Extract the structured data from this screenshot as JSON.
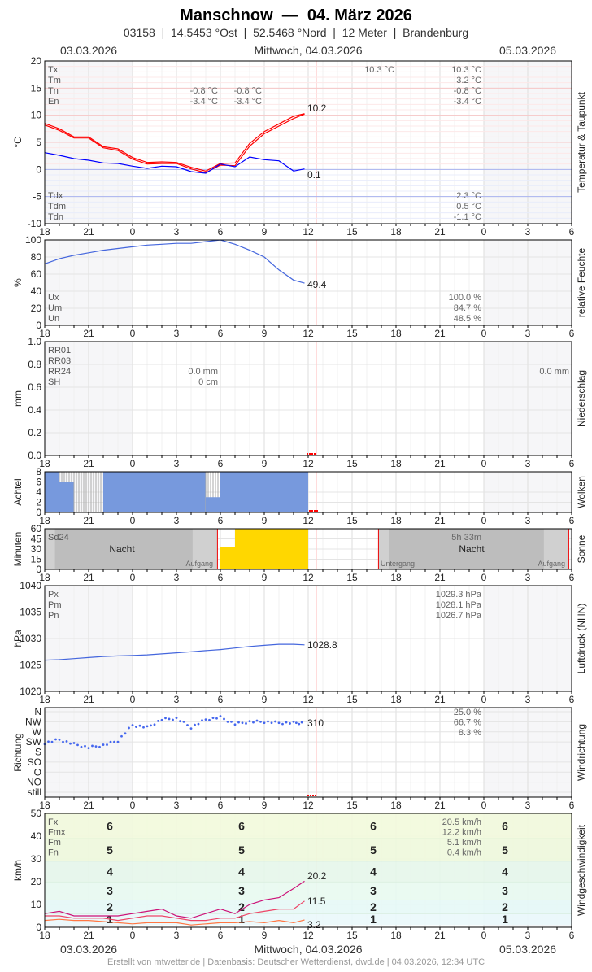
{
  "header": {
    "title": "Manschnow  —  04. März 2026",
    "subtitle": "03158  |  14.5453 °Ost  |  52.5468 °Nord  |  12 Meter  |  Brandenburg"
  },
  "dates": {
    "left": "03.03.2026",
    "center": "Mittwoch, 04.03.2026",
    "right": "05.03.2026"
  },
  "footer": "Erstellt von mtwetter.de | Datenbasis: Deutscher Wetterdienst, dwd.de | 04.03.2026, 12:34 UTC",
  "colors": {
    "temp": "#ff0000",
    "dew": "#0000ff",
    "humidity": "#4466dd",
    "clouds": "#7799dd",
    "sun": "#ffd700",
    "pressure": "#4466dd",
    "winddir": "#4466ee",
    "Fx": "#cc1177",
    "Fm": "#ee4466",
    "Fn": "#ff7744",
    "now": "#ff0000"
  },
  "chart_data": [
    {
      "type": "line",
      "id": "temp",
      "ylabel": "°C",
      "side_title": "Temperatur & Taupunkt",
      "ylim": [
        -10,
        20
      ],
      "yticks": [
        "20",
        "15",
        "10",
        "5",
        "0",
        "-5",
        "-10"
      ],
      "xticks": [
        "18",
        "21",
        "0",
        "3",
        "6",
        "9",
        "12",
        "15",
        "18",
        "21",
        "0",
        "3",
        "6"
      ],
      "x": [
        "18:00",
        "19:00",
        "20:00",
        "21:00",
        "22:00",
        "23:00",
        "00:00",
        "01:00",
        "02:00",
        "03:00",
        "04:00",
        "05:00",
        "06:00",
        "07:00",
        "08:00",
        "09:00",
        "10:00",
        "11:00",
        "11:45"
      ],
      "series": [
        {
          "key": "tx",
          "values": [
            8.5,
            7.5,
            6,
            6,
            4.2,
            3.8,
            2.2,
            1.3,
            1.4,
            1.3,
            0.4,
            -0.3,
            1.1,
            1.2,
            4.8,
            7.0,
            8.4,
            9.8,
            10.3
          ]
        },
        {
          "key": "tm",
          "values": [
            8.2,
            7.2,
            5.8,
            5.8,
            4.0,
            3.5,
            1.9,
            1.0,
            1.1,
            1.1,
            0.1,
            -0.6,
            0.8,
            0.7,
            4.3,
            6.6,
            8.0,
            9.4,
            10.2
          ]
        },
        {
          "key": "td",
          "values": [
            3.1,
            2.6,
            2.0,
            1.7,
            1.2,
            1.1,
            0.6,
            0.2,
            0.6,
            0.5,
            -0.4,
            -0.7,
            1.0,
            0.5,
            2.3,
            1.8,
            1.6,
            -0.3,
            0.1
          ]
        }
      ],
      "last_labels": [
        "10.2",
        "0.1"
      ],
      "legend_top": [
        "Tx",
        "Tm",
        "Tn",
        "En"
      ],
      "legend_bottom": [
        "Tdx",
        "Tdm",
        "Tdn"
      ],
      "stats_top": [
        [
          "",
          "",
          "10.3 °C",
          "10.3 °C"
        ],
        [
          "",
          "",
          "",
          "3.2 °C"
        ],
        [
          "-0.8 °C",
          "-0.8 °C",
          "",
          "-0.8 °C"
        ],
        [
          "-3.4 °C",
          "-3.4 °C",
          "",
          "-3.4 °C"
        ]
      ],
      "stats_bottom": [
        "2.3 °C",
        "0.5 °C",
        "-1.1 °C"
      ]
    },
    {
      "type": "line",
      "id": "humidity",
      "ylabel": "%",
      "side_title": "relative Feuchte",
      "ylim": [
        0,
        100
      ],
      "yticks": [
        "100",
        "80",
        "60",
        "40",
        "20",
        "0"
      ],
      "values": [
        72,
        78,
        82,
        85,
        88,
        90,
        92,
        94,
        95,
        96,
        96,
        98,
        100,
        95,
        88,
        80,
        65,
        53,
        49.4
      ],
      "last_label": "49.4",
      "legend": [
        "Ux",
        "Um",
        "Un"
      ],
      "stats": [
        "100.0 %",
        "84.7 %",
        "48.5 %"
      ]
    },
    {
      "type": "bar",
      "id": "precip",
      "ylabel": "mm",
      "side_title": "Niederschlag",
      "ylim": [
        0,
        1.0
      ],
      "yticks": [
        "1.0",
        "0.8",
        "0.6",
        "0.4",
        "0.2",
        "0.0"
      ],
      "legend": [
        "RR01",
        "RR03",
        "RR24",
        "SH"
      ],
      "stats_left": [
        "",
        "",
        "0.0 mm",
        "0 cm"
      ],
      "stats_right": "0.0 mm"
    },
    {
      "type": "bar",
      "id": "clouds",
      "ylabel": "Achtel",
      "side_title": "Wolken",
      "ylim": [
        0,
        8
      ],
      "yticks": [
        "8",
        "6",
        "4",
        "2",
        "0"
      ],
      "hours": [
        "18",
        "19",
        "20",
        "21",
        "22",
        "23",
        "0",
        "1",
        "2",
        "3",
        "4",
        "5",
        "6",
        "7",
        "8",
        "9",
        "10",
        "11"
      ],
      "values": [
        8,
        6,
        0,
        0,
        8,
        8,
        8,
        8,
        8,
        8,
        8,
        3,
        8,
        8,
        8,
        8,
        8,
        8
      ]
    },
    {
      "type": "bar",
      "id": "sun",
      "ylabel": "Minuten",
      "side_title": "Sonne",
      "ylim": [
        0,
        60
      ],
      "yticks": [
        "60",
        "45",
        "30",
        "15",
        "0"
      ],
      "hours": [
        "6",
        "7",
        "8",
        "9",
        "10",
        "11"
      ],
      "values": [
        33,
        60,
        60,
        60,
        60,
        60
      ],
      "label": "Sd24",
      "total": "5h 33m",
      "night": "Nacht",
      "sunrise": "Aufgang",
      "sunset": "Untergang"
    },
    {
      "type": "line",
      "id": "pressure",
      "ylabel": "hPa",
      "side_title": "Luftdruck (NHN)",
      "ylim": [
        1020,
        1040
      ],
      "yticks": [
        "1040",
        "1035",
        "1030",
        "1025",
        "1020"
      ],
      "values": [
        1025.9,
        1026.0,
        1026.2,
        1026.4,
        1026.6,
        1026.7,
        1026.8,
        1026.9,
        1027.1,
        1027.3,
        1027.5,
        1027.7,
        1027.9,
        1028.2,
        1028.5,
        1028.7,
        1028.9,
        1028.9,
        1028.8
      ],
      "last_label": "1028.8",
      "legend": [
        "Px",
        "Pm",
        "Pn"
      ],
      "stats": [
        "1029.3 hPa",
        "1028.1 hPa",
        "1026.7 hPa"
      ]
    },
    {
      "type": "scatter",
      "id": "winddir",
      "ylabel": "Richtung",
      "side_title": "Windrichtung",
      "yticks": [
        "N",
        "NW",
        "W",
        "SW",
        "S",
        "SO",
        "O",
        "NO",
        "still"
      ],
      "values": [
        220,
        235,
        215,
        200,
        210,
        230,
        300,
        290,
        325,
        330,
        290,
        325,
        335,
        305,
        315,
        315,
        310,
        310,
        310
      ],
      "last_label": "310",
      "stats": [
        "25.0 %",
        "66.7 %",
        "8.3 %"
      ]
    },
    {
      "type": "line",
      "id": "wind",
      "ylabel": "km/h",
      "side_title": "Windgeschwindigkeit",
      "ylim": [
        0,
        50
      ],
      "yticks": [
        "50",
        "40",
        "30",
        "20",
        "10",
        "0"
      ],
      "series": [
        {
          "name": "Fx",
          "values": [
            6,
            7,
            5,
            5,
            5,
            5,
            6,
            7,
            8,
            5,
            4,
            6,
            8,
            6,
            10,
            12,
            13,
            17,
            20.2
          ]
        },
        {
          "name": "Fm",
          "values": [
            5,
            5,
            4,
            4,
            4,
            3,
            4,
            5,
            5,
            4,
            3,
            3,
            4,
            4,
            6,
            7,
            8,
            8,
            11.5
          ]
        },
        {
          "name": "Fn",
          "values": [
            3,
            3.5,
            3,
            3,
            2.5,
            2,
            1.5,
            2,
            2,
            2,
            1,
            1.5,
            2,
            2,
            2.5,
            2,
            3,
            2,
            3.2
          ]
        }
      ],
      "last_labels": [
        "20.2",
        "11.5",
        "3.2"
      ],
      "legend": [
        "Fx",
        "Fmx",
        "Fm",
        "Fn"
      ],
      "stats": [
        "20.5 km/h",
        "12.2 km/h",
        "5.1 km/h",
        "0.4 km/h"
      ],
      "beaufort": [
        "1",
        "2",
        "3",
        "4",
        "5",
        "6"
      ]
    }
  ]
}
